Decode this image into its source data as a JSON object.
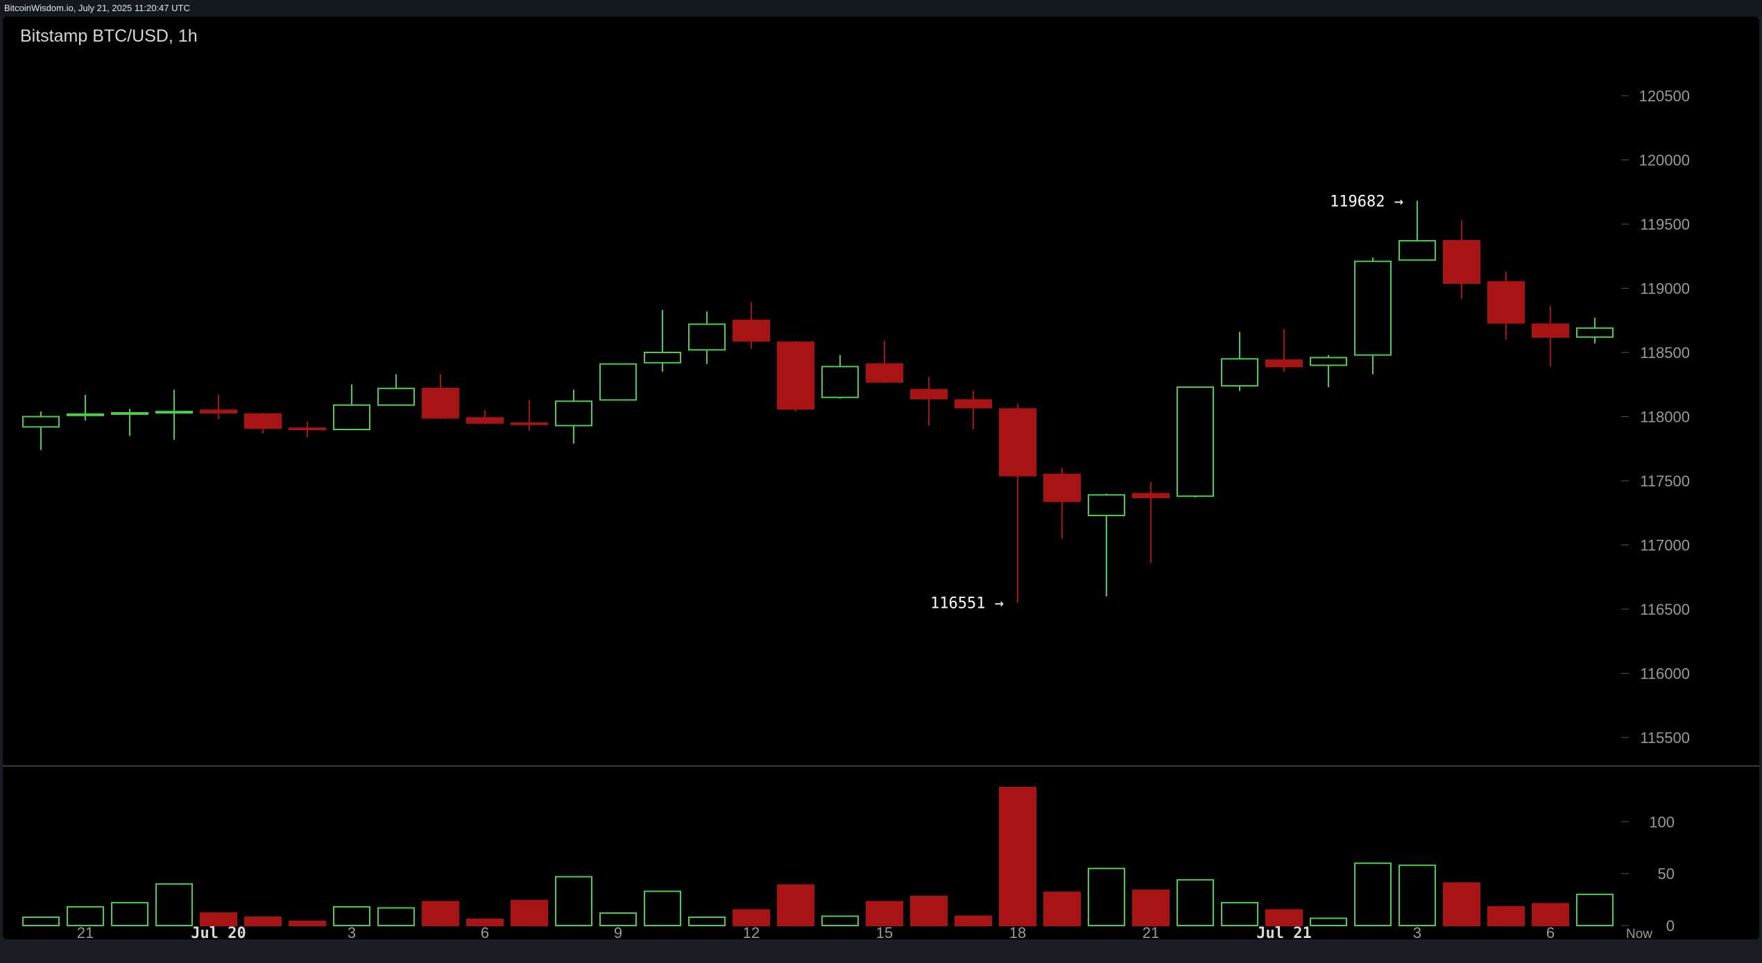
{
  "header": {
    "source_text": "BitcoinWisdom.io, July 21, 2025 11:20:47 UTC"
  },
  "chart_data": {
    "type": "candlestick",
    "title": "Bitstamp BTC/USD, 1h",
    "price_axis": {
      "range": [
        115300,
        120900
      ],
      "ticks": [
        115500,
        116000,
        116500,
        117000,
        117500,
        118000,
        118500,
        119000,
        119500,
        120000,
        120500
      ]
    },
    "volume_axis": {
      "range": [
        0,
        137
      ],
      "ticks": [
        0,
        50,
        100
      ]
    },
    "x_labels": [
      {
        "label": "21",
        "at": 1,
        "bold": false
      },
      {
        "label": "Jul 20",
        "at": 4,
        "bold": true
      },
      {
        "label": "3",
        "at": 7,
        "bold": false
      },
      {
        "label": "6",
        "at": 10,
        "bold": false
      },
      {
        "label": "9",
        "at": 13,
        "bold": false
      },
      {
        "label": "12",
        "at": 16,
        "bold": false
      },
      {
        "label": "15",
        "at": 19,
        "bold": false
      },
      {
        "label": "18",
        "at": 22,
        "bold": false
      },
      {
        "label": "21",
        "at": 25,
        "bold": false
      },
      {
        "label": "Jul 21",
        "at": 28,
        "bold": true
      },
      {
        "label": "3",
        "at": 31,
        "bold": false
      },
      {
        "label": "6",
        "at": 34,
        "bold": false
      },
      {
        "label": "Now",
        "at": 36,
        "bold": false
      }
    ],
    "annotations": [
      {
        "text": "119682 →",
        "candle": 31,
        "price": 119682,
        "side": "left"
      },
      {
        "text": "116551 →",
        "candle": 22,
        "price": 116551,
        "side": "left"
      }
    ],
    "colors": {
      "up": "#4ccd4c",
      "down": "#a81414",
      "axis_text": "#9a9a9a",
      "background": "#000000",
      "divider": "#3c3c3c"
    },
    "candles": [
      {
        "o": 117920,
        "h": 118040,
        "l": 117740,
        "c": 118000,
        "v": 8
      },
      {
        "o": 118010,
        "h": 118170,
        "l": 117970,
        "c": 118020,
        "v": 18
      },
      {
        "o": 118020,
        "h": 118060,
        "l": 117850,
        "c": 118030,
        "v": 22
      },
      {
        "o": 118030,
        "h": 118210,
        "l": 117820,
        "c": 118040,
        "v": 40
      },
      {
        "o": 118050,
        "h": 118170,
        "l": 117980,
        "c": 118030,
        "v": 12
      },
      {
        "o": 118020,
        "h": 118030,
        "l": 117870,
        "c": 117910,
        "v": 8
      },
      {
        "o": 117910,
        "h": 117960,
        "l": 117840,
        "c": 117900,
        "v": 4
      },
      {
        "o": 117900,
        "h": 118250,
        "l": 117900,
        "c": 118090,
        "v": 18
      },
      {
        "o": 118090,
        "h": 118330,
        "l": 118090,
        "c": 118220,
        "v": 17
      },
      {
        "o": 118220,
        "h": 118330,
        "l": 117980,
        "c": 117990,
        "v": 23
      },
      {
        "o": 117990,
        "h": 118050,
        "l": 117940,
        "c": 117950,
        "v": 6
      },
      {
        "o": 117950,
        "h": 118130,
        "l": 117890,
        "c": 117940,
        "v": 24
      },
      {
        "o": 117930,
        "h": 118210,
        "l": 117790,
        "c": 118120,
        "v": 47
      },
      {
        "o": 118130,
        "h": 118410,
        "l": 118130,
        "c": 118410,
        "v": 12
      },
      {
        "o": 118420,
        "h": 118830,
        "l": 118350,
        "c": 118500,
        "v": 33
      },
      {
        "o": 118520,
        "h": 118820,
        "l": 118410,
        "c": 118720,
        "v": 8
      },
      {
        "o": 118750,
        "h": 118890,
        "l": 118530,
        "c": 118590,
        "v": 15
      },
      {
        "o": 118580,
        "h": 118590,
        "l": 118040,
        "c": 118060,
        "v": 39
      },
      {
        "o": 118150,
        "h": 118480,
        "l": 118140,
        "c": 118390,
        "v": 9
      },
      {
        "o": 118410,
        "h": 118590,
        "l": 118260,
        "c": 118270,
        "v": 23
      },
      {
        "o": 118210,
        "h": 118310,
        "l": 117930,
        "c": 118140,
        "v": 28
      },
      {
        "o": 118130,
        "h": 118200,
        "l": 117900,
        "c": 118070,
        "v": 9
      },
      {
        "o": 118060,
        "h": 118100,
        "l": 116551,
        "c": 117540,
        "v": 133
      },
      {
        "o": 117550,
        "h": 117600,
        "l": 117050,
        "c": 117340,
        "v": 32
      },
      {
        "o": 117230,
        "h": 117400,
        "l": 116600,
        "c": 117390,
        "v": 55
      },
      {
        "o": 117400,
        "h": 117490,
        "l": 116860,
        "c": 117370,
        "v": 34
      },
      {
        "o": 117380,
        "h": 118230,
        "l": 117370,
        "c": 118230,
        "v": 44
      },
      {
        "o": 118240,
        "h": 118660,
        "l": 118200,
        "c": 118450,
        "v": 22
      },
      {
        "o": 118440,
        "h": 118680,
        "l": 118350,
        "c": 118390,
        "v": 15
      },
      {
        "o": 118400,
        "h": 118480,
        "l": 118230,
        "c": 118460,
        "v": 7
      },
      {
        "o": 118480,
        "h": 119240,
        "l": 118330,
        "c": 119210,
        "v": 60
      },
      {
        "o": 119220,
        "h": 119682,
        "l": 119220,
        "c": 119370,
        "v": 58
      },
      {
        "o": 119370,
        "h": 119530,
        "l": 118920,
        "c": 119040,
        "v": 41
      },
      {
        "o": 119050,
        "h": 119130,
        "l": 118600,
        "c": 118730,
        "v": 18
      },
      {
        "o": 118720,
        "h": 118860,
        "l": 118390,
        "c": 118620,
        "v": 21
      },
      {
        "o": 118620,
        "h": 118770,
        "l": 118570,
        "c": 118690,
        "v": 30
      }
    ]
  }
}
